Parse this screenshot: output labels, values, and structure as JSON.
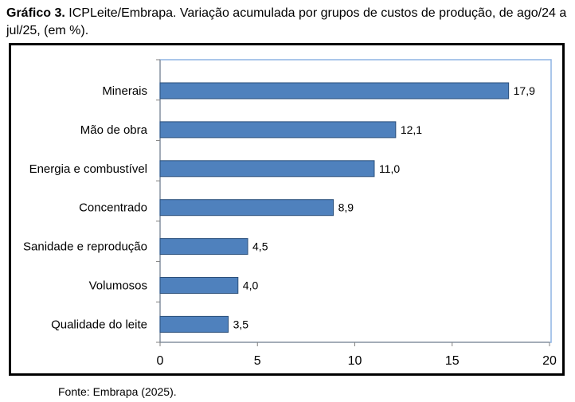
{
  "caption": {
    "label": "Gráfico 3.",
    "text": "ICPLeite/Embrapa. Variação acumulada por grupos de custos de produção, de ago/24 a jul/25, (em %)."
  },
  "source": "Fonte: Embrapa (2025).",
  "chart_data": {
    "type": "bar",
    "orientation": "horizontal",
    "title": "",
    "xlabel": "",
    "ylabel": "",
    "categories": [
      "Minerais",
      "Mão de obra",
      "Energia e combustível",
      "Concentrado",
      "Sanidade e reprodução",
      "Volumosos",
      "Qualidade do leite"
    ],
    "values": [
      17.9,
      12.1,
      11.0,
      8.9,
      4.5,
      4.0,
      3.5
    ],
    "value_labels": [
      "17,9",
      "12,1",
      "11,0",
      "8,9",
      "4,5",
      "4,0",
      "3,5"
    ],
    "xlim": [
      0,
      20
    ],
    "x_ticks": [
      0,
      5,
      10,
      15,
      20
    ],
    "x_tick_labels": [
      "0",
      "5",
      "10",
      "15",
      "20"
    ],
    "grid": false,
    "legend": "none",
    "colors": {
      "bar_fill": "#4f81bd",
      "bar_stroke": "#2b4f7a",
      "plot_border": "#8eb4e3",
      "axis": "#808080"
    }
  }
}
